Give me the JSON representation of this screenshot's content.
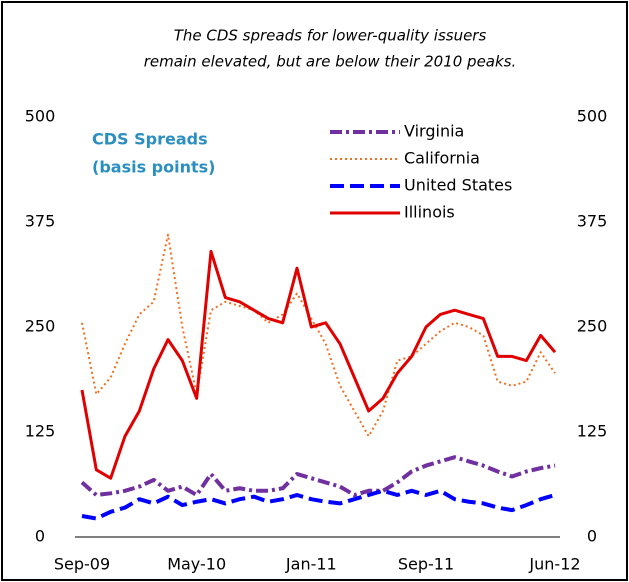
{
  "chart_data": {
    "type": "line",
    "title": [
      "The CDS spreads for lower-quality issuers",
      "remain elevated, but are below their 2010 peaks."
    ],
    "annotation": [
      "CDS Spreads",
      "(basis points)"
    ],
    "categories": [
      "Sep-09",
      null,
      null,
      null,
      null,
      null,
      null,
      null,
      "May-10",
      null,
      null,
      null,
      null,
      null,
      null,
      null,
      "Jan-11",
      null,
      null,
      null,
      null,
      null,
      null,
      null,
      "Sep-11",
      null,
      null,
      null,
      null,
      null,
      null,
      null,
      null,
      "Jun-12"
    ],
    "series": [
      {
        "name": "Virginia",
        "color": "#7030a0",
        "style": "dashdot",
        "values": [
          65,
          50,
          52,
          55,
          60,
          68,
          55,
          60,
          50,
          75,
          55,
          58,
          55,
          55,
          58,
          75,
          70,
          65,
          60,
          50,
          55,
          55,
          65,
          78,
          85,
          90,
          95,
          90,
          85,
          78,
          72,
          78,
          82,
          85
        ]
      },
      {
        "name": "California",
        "color": "#f07020",
        "style": "dotted",
        "values": [
          255,
          170,
          190,
          230,
          265,
          280,
          360,
          250,
          170,
          270,
          280,
          275,
          270,
          255,
          265,
          290,
          260,
          230,
          180,
          150,
          120,
          150,
          210,
          215,
          230,
          245,
          255,
          250,
          240,
          185,
          180,
          185,
          220,
          195
        ]
      },
      {
        "name": "United States",
        "color": "#0000ff",
        "style": "dashed",
        "values": [
          25,
          22,
          30,
          35,
          45,
          40,
          48,
          38,
          42,
          45,
          40,
          45,
          48,
          42,
          45,
          50,
          45,
          42,
          40,
          45,
          50,
          55,
          50,
          55,
          50,
          55,
          45,
          42,
          40,
          35,
          32,
          38,
          45,
          50
        ]
      },
      {
        "name": "Illinois",
        "color": "#e00000",
        "style": "solid",
        "values": [
          175,
          80,
          70,
          120,
          150,
          200,
          235,
          210,
          165,
          340,
          285,
          280,
          270,
          260,
          255,
          320,
          250,
          255,
          230,
          190,
          150,
          165,
          195,
          215,
          250,
          265,
          270,
          265,
          260,
          215,
          215,
          210,
          240,
          220
        ]
      }
    ],
    "ylim": [
      0,
      500
    ],
    "yticks": [
      0,
      125,
      250,
      375,
      500
    ],
    "y2lim": [
      0,
      500
    ],
    "y2ticks": [
      0,
      125,
      250,
      375,
      500
    ]
  }
}
